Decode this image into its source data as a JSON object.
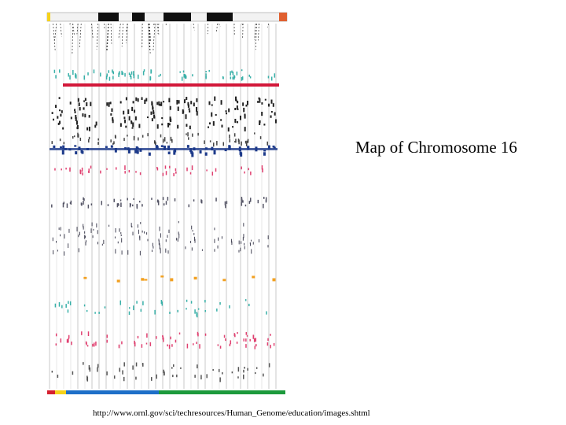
{
  "slide": {
    "title": "Map of Chromosome 16",
    "caption": "http://www.ornl.gov/sci/techresources/Human_Genome/education/images.shtml"
  },
  "figure": {
    "description_image": "chromosome-16-genome-map",
    "colors": {
      "band_dark": "#111111",
      "band_light": "#e8e8e8",
      "centromere": "#e06030",
      "coverage_red": "#d2183a",
      "track_blue": "#1d3a8a",
      "track_orange": "#f2a020",
      "track_teal": "#38b0a8",
      "track_pink": "#e04070",
      "bar_blue": "#1e6fc8",
      "bar_green": "#1c9a3c",
      "bar_red": "#d51f2f",
      "bar_yellow": "#f6d21a"
    }
  }
}
